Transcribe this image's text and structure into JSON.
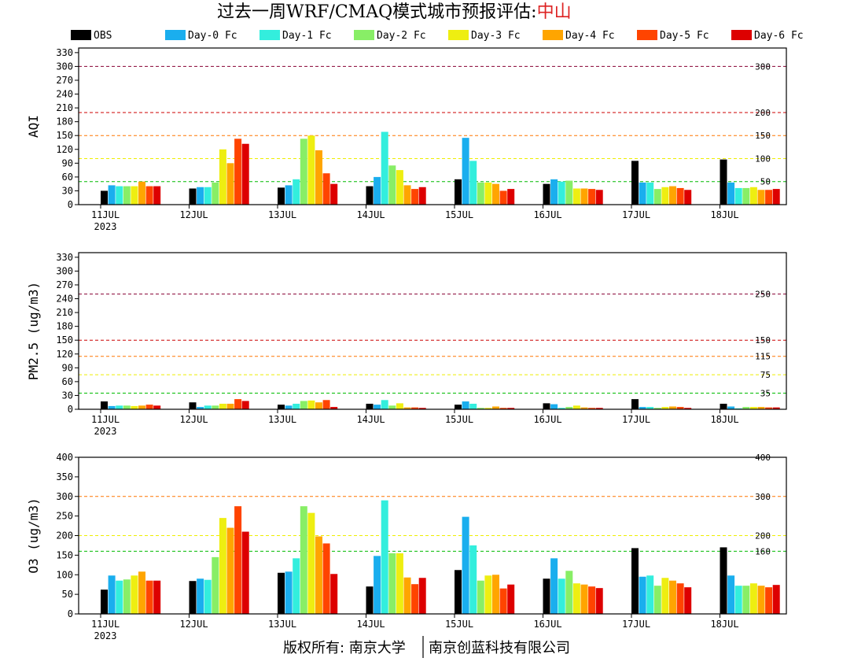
{
  "title": {
    "text": "过去一周WRF/CMAQ模式城市预报评估:",
    "city": "中山",
    "city_color": "#dd2222"
  },
  "footer": {
    "left": "版权所有: 南京大学",
    "right": "南京创蓝科技有限公司"
  },
  "legend": [
    {
      "name": "OBS",
      "color": "#000000"
    },
    {
      "name": "Day-0 Fc",
      "color": "#1aaeee"
    },
    {
      "name": "Day-1 Fc",
      "color": "#33eedd"
    },
    {
      "name": "Day-2 Fc",
      "color": "#88ee66"
    },
    {
      "name": "Day-3 Fc",
      "color": "#eeee11"
    },
    {
      "name": "Day-4 Fc",
      "color": "#ffa500"
    },
    {
      "name": "Day-5 Fc",
      "color": "#ff4400"
    },
    {
      "name": "Day-6 Fc",
      "color": "#dd0000"
    }
  ],
  "chart_data": [
    {
      "type": "bar",
      "ylabel": "AQI",
      "categories": [
        "11JUL",
        "12JUL",
        "13JUL",
        "14JUL",
        "15JUL",
        "16JUL",
        "17JUL",
        "18JUL"
      ],
      "year_label": "2023",
      "ylim": [
        0,
        340
      ],
      "yticks": [
        0,
        30,
        60,
        90,
        120,
        150,
        180,
        210,
        240,
        270,
        300,
        330
      ],
      "thresholds": [
        {
          "value": 300,
          "label": "300",
          "color": "#880033"
        },
        {
          "value": 200,
          "label": "200",
          "color": "#cc0000"
        },
        {
          "value": 150,
          "label": "150",
          "color": "#ff7700"
        },
        {
          "value": 100,
          "label": "100",
          "color": "#eeee00"
        },
        {
          "value": 50,
          "label": "50",
          "color": "#00bb00"
        }
      ],
      "series": [
        {
          "name": "OBS",
          "values": [
            30,
            35,
            37,
            40,
            55,
            45,
            95,
            98
          ]
        },
        {
          "name": "Day-0 Fc",
          "values": [
            42,
            38,
            42,
            60,
            145,
            55,
            48,
            48
          ]
        },
        {
          "name": "Day-1 Fc",
          "values": [
            40,
            38,
            55,
            158,
            95,
            50,
            48,
            36
          ]
        },
        {
          "name": "Day-2 Fc",
          "values": [
            40,
            48,
            143,
            85,
            48,
            52,
            34,
            36
          ]
        },
        {
          "name": "Day-3 Fc",
          "values": [
            40,
            120,
            150,
            75,
            48,
            35,
            38,
            38
          ]
        },
        {
          "name": "Day-4 Fc",
          "values": [
            50,
            90,
            118,
            42,
            45,
            35,
            40,
            32
          ]
        },
        {
          "name": "Day-5 Fc",
          "values": [
            40,
            143,
            68,
            34,
            30,
            34,
            36,
            32
          ]
        },
        {
          "name": "Day-6 Fc",
          "values": [
            40,
            132,
            45,
            38,
            34,
            32,
            32,
            34
          ]
        }
      ]
    },
    {
      "type": "bar",
      "ylabel": "PM2.5 (ug/m3)",
      "categories": [
        "11JUL",
        "12JUL",
        "13JUL",
        "14JUL",
        "15JUL",
        "16JUL",
        "17JUL",
        "18JUL"
      ],
      "year_label": "2023",
      "ylim": [
        0,
        340
      ],
      "yticks": [
        0,
        30,
        60,
        90,
        120,
        150,
        180,
        210,
        240,
        270,
        300,
        330
      ],
      "thresholds": [
        {
          "value": 250,
          "label": "250",
          "color": "#880033"
        },
        {
          "value": 150,
          "label": "150",
          "color": "#cc0000"
        },
        {
          "value": 115,
          "label": "115",
          "color": "#ff7700"
        },
        {
          "value": 75,
          "label": "75",
          "color": "#eeee00"
        },
        {
          "value": 35,
          "label": "35",
          "color": "#00bb00"
        }
      ],
      "series": [
        {
          "name": "OBS",
          "values": [
            17,
            15,
            10,
            12,
            10,
            13,
            22,
            12
          ]
        },
        {
          "name": "Day-0 Fc",
          "values": [
            7,
            5,
            8,
            10,
            17,
            11,
            5,
            6
          ]
        },
        {
          "name": "Day-1 Fc",
          "values": [
            8,
            8,
            12,
            20,
            12,
            3,
            5,
            2
          ]
        },
        {
          "name": "Day-2 Fc",
          "values": [
            8,
            8,
            18,
            8,
            3,
            5,
            3,
            5
          ]
        },
        {
          "name": "Day-3 Fc",
          "values": [
            7,
            12,
            19,
            13,
            3,
            8,
            5,
            5
          ]
        },
        {
          "name": "Day-4 Fc",
          "values": [
            8,
            12,
            15,
            4,
            6,
            4,
            6,
            5
          ]
        },
        {
          "name": "Day-5 Fc",
          "values": [
            10,
            22,
            20,
            4,
            3,
            3,
            5,
            4
          ]
        },
        {
          "name": "Day-6 Fc",
          "values": [
            8,
            18,
            5,
            3,
            3,
            3,
            3,
            4
          ]
        }
      ]
    },
    {
      "type": "bar",
      "ylabel": "O3 (ug/m3)",
      "categories": [
        "11JUL",
        "12JUL",
        "13JUL",
        "14JUL",
        "15JUL",
        "16JUL",
        "17JUL",
        "18JUL"
      ],
      "year_label": "2023",
      "ylim": [
        0,
        400
      ],
      "yticks": [
        0,
        50,
        100,
        150,
        200,
        250,
        300,
        350,
        400
      ],
      "thresholds": [
        {
          "value": 400,
          "label": "400",
          "color": "#cc0000"
        },
        {
          "value": 300,
          "label": "300",
          "color": "#ff7700"
        },
        {
          "value": 200,
          "label": "200",
          "color": "#eeee00"
        },
        {
          "value": 160,
          "label": "160",
          "color": "#00bb00"
        }
      ],
      "series": [
        {
          "name": "OBS",
          "values": [
            62,
            84,
            105,
            70,
            112,
            90,
            168,
            170
          ]
        },
        {
          "name": "Day-0 Fc",
          "values": [
            98,
            90,
            108,
            148,
            248,
            142,
            95,
            98
          ]
        },
        {
          "name": "Day-1 Fc",
          "values": [
            85,
            87,
            142,
            290,
            175,
            90,
            98,
            72
          ]
        },
        {
          "name": "Day-2 Fc",
          "values": [
            88,
            145,
            275,
            155,
            85,
            110,
            72,
            72
          ]
        },
        {
          "name": "Day-3 Fc",
          "values": [
            98,
            245,
            258,
            155,
            98,
            78,
            92,
            78
          ]
        },
        {
          "name": "Day-4 Fc",
          "values": [
            108,
            220,
            198,
            93,
            100,
            75,
            85,
            72
          ]
        },
        {
          "name": "Day-5 Fc",
          "values": [
            85,
            275,
            180,
            76,
            65,
            70,
            78,
            68
          ]
        },
        {
          "name": "Day-6 Fc",
          "values": [
            85,
            210,
            102,
            92,
            75,
            66,
            68,
            74
          ]
        }
      ]
    }
  ]
}
